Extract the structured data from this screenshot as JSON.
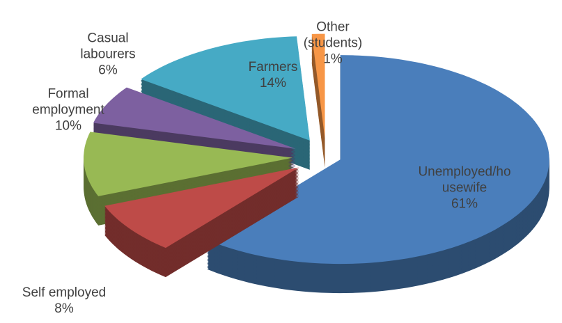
{
  "chart_data": {
    "type": "pie3d",
    "categories": [
      "Unemployed/housewife",
      "Self employed",
      "Formal employment",
      "Casual labourers",
      "Farmers",
      "Other (students)"
    ],
    "values": [
      61,
      8,
      10,
      6,
      14,
      1
    ],
    "value_labels": [
      "61%",
      "8%",
      "10%",
      "6%",
      "14%",
      "1%"
    ],
    "colors": [
      "#4a7ebb",
      "#be4b48",
      "#98b954",
      "#7d60a0",
      "#46aac5",
      "#f79646"
    ]
  }
}
